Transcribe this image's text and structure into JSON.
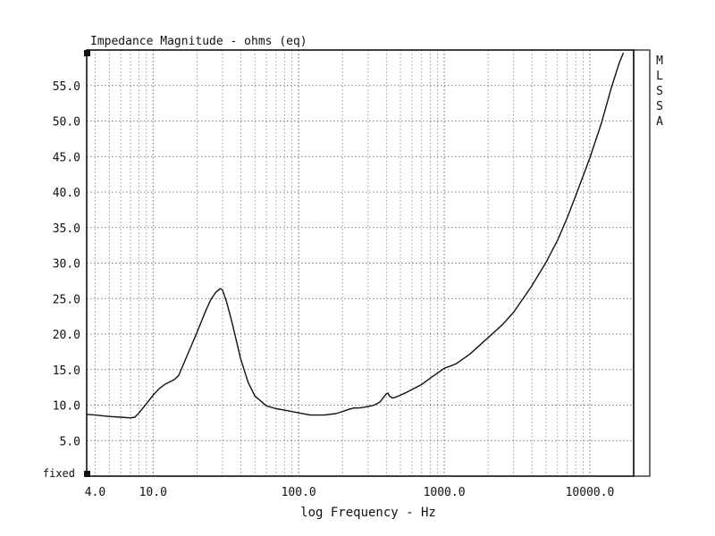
{
  "chart_data": {
    "type": "line",
    "title": "Impedance Magnitude - ohms (eq)",
    "xlabel": "log Frequency - Hz",
    "ylabel": "",
    "xscale": "log",
    "xlim": [
      3.5,
      20000
    ],
    "ylim": [
      0,
      60
    ],
    "grid": true,
    "y_ticks": [
      5,
      10,
      15,
      20,
      25,
      30,
      35,
      40,
      45,
      50,
      55
    ],
    "y_tick_labels": [
      "5.0",
      "10.0",
      "15.0",
      "20.0",
      "25.0",
      "30.0",
      "35.0",
      "40.0",
      "45.0",
      "50.0",
      "55.0"
    ],
    "y_bottom_label": "fixed",
    "x_ticks": [
      4,
      10,
      100,
      1000,
      10000
    ],
    "x_tick_labels": [
      "4.0",
      "10.0",
      "100.0",
      "1000.0",
      "10000.0"
    ],
    "side_label": [
      "M",
      "L",
      "S",
      "S",
      "A"
    ],
    "series": [
      {
        "x": [
          3.5,
          4,
          5,
          6,
          7,
          7.5,
          8,
          9,
          10,
          11,
          12,
          14,
          15,
          17,
          20,
          23,
          25,
          27,
          29,
          30,
          32,
          35,
          40,
          45,
          50,
          60,
          70,
          80,
          100,
          120,
          150,
          180,
          200,
          220,
          240,
          260,
          280,
          300,
          330,
          360,
          380,
          400,
          410,
          420,
          440,
          460,
          500,
          550,
          600,
          700,
          800,
          900,
          1000,
          1100,
          1200,
          1500,
          2000,
          2500,
          3000,
          4000,
          5000,
          6000,
          7000,
          8000,
          10000,
          12000,
          14000,
          16000,
          17000
        ],
        "y": [
          8.7,
          8.6,
          8.4,
          8.3,
          8.2,
          8.3,
          8.9,
          10.2,
          11.4,
          12.3,
          12.9,
          13.6,
          14.2,
          16.8,
          20.2,
          23.3,
          24.9,
          25.9,
          26.4,
          26.2,
          24.5,
          21.5,
          16.5,
          13.2,
          11.3,
          9.9,
          9.5,
          9.3,
          8.9,
          8.6,
          8.6,
          8.8,
          9.1,
          9.4,
          9.6,
          9.6,
          9.7,
          9.8,
          10.0,
          10.4,
          11.0,
          11.6,
          11.7,
          11.3,
          11.0,
          11.1,
          11.4,
          11.8,
          12.2,
          12.9,
          13.8,
          14.5,
          15.2,
          15.5,
          15.8,
          17.2,
          19.5,
          21.3,
          23.1,
          26.8,
          30.1,
          33.2,
          36.4,
          39.5,
          44.8,
          49.7,
          54.6,
          58.3,
          59.6
        ]
      }
    ]
  }
}
